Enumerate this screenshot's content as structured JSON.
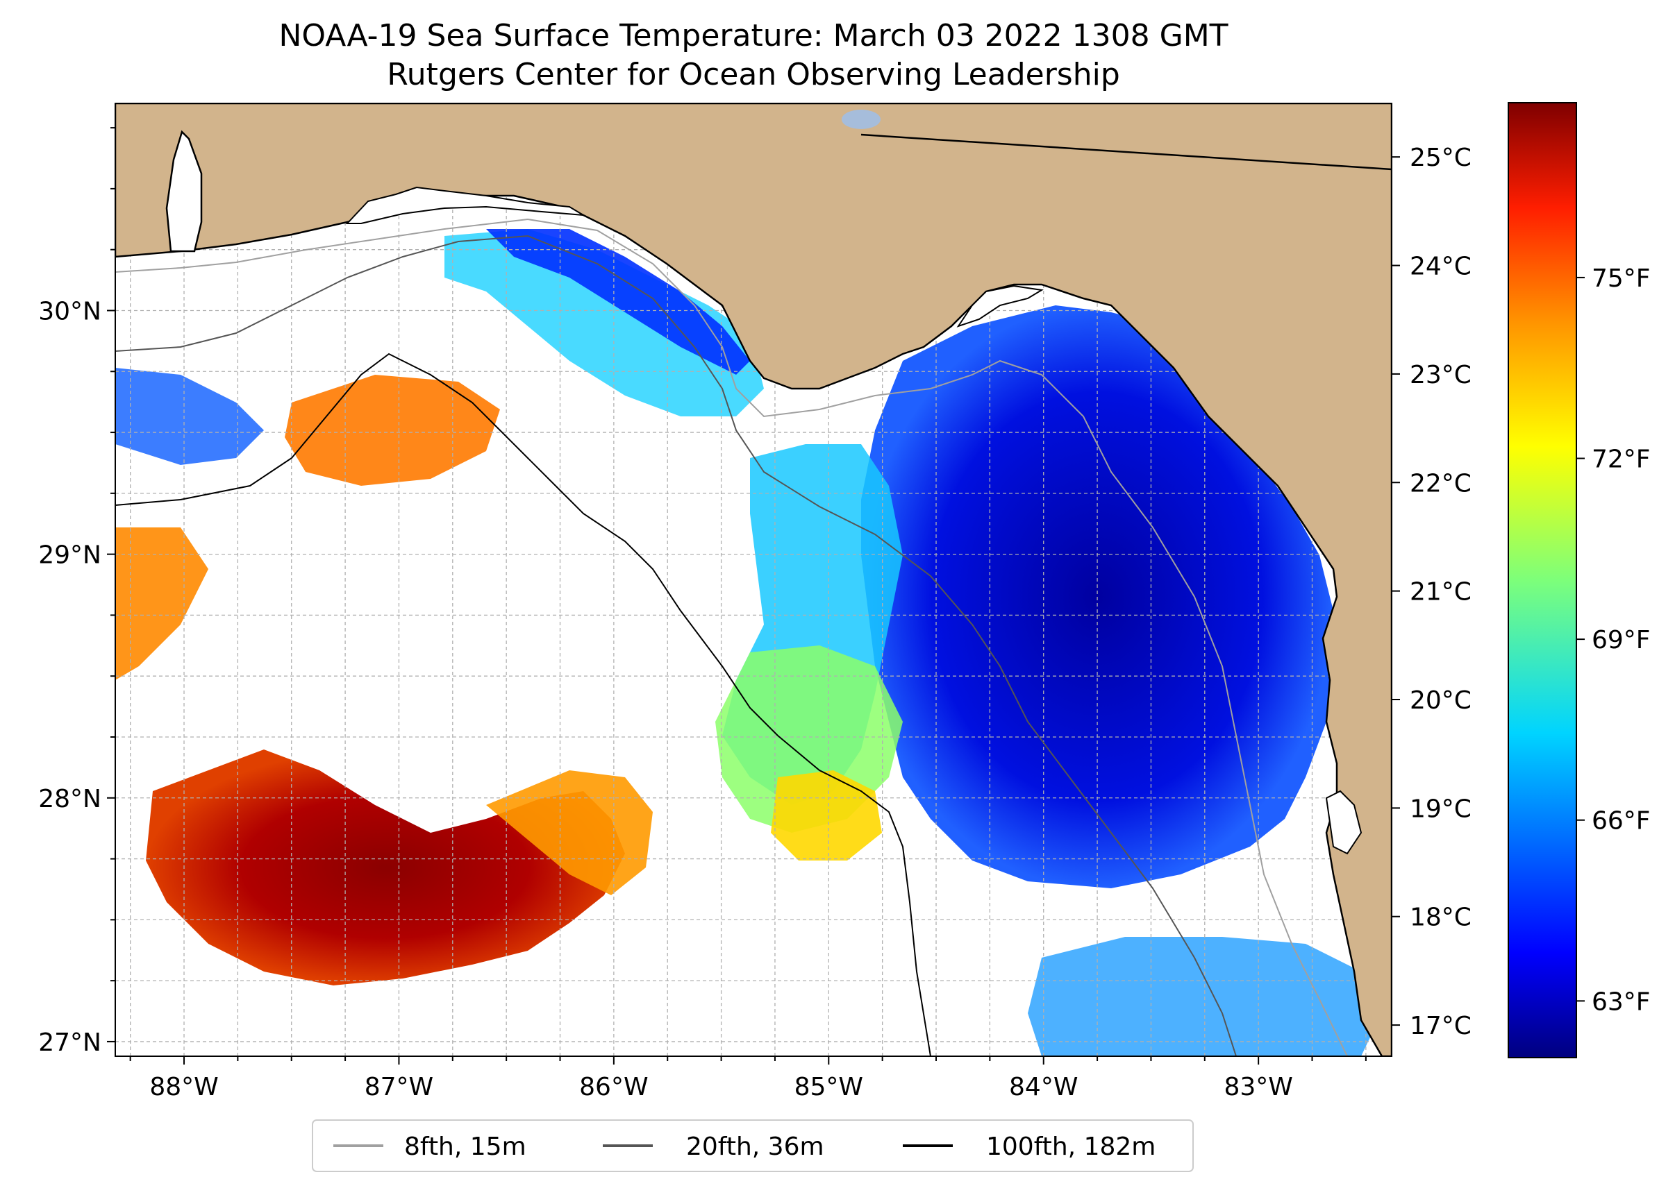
{
  "title": {
    "line1": "NOAA-19 Sea Surface Temperature: March 03 2022 1308 GMT",
    "line2": "Rutgers Center for Ocean Observing Leadership"
  },
  "map": {
    "lon_range": [
      -88.32,
      -82.38
    ],
    "lat_range": [
      26.94,
      30.85
    ],
    "lon_ticks": [
      {
        "value": -88,
        "label": "88°W"
      },
      {
        "value": -87,
        "label": "87°W"
      },
      {
        "value": -86,
        "label": "86°W"
      },
      {
        "value": -85,
        "label": "85°W"
      },
      {
        "value": -84,
        "label": "84°W"
      },
      {
        "value": -83,
        "label": "83°W"
      }
    ],
    "lat_ticks": [
      {
        "value": 27,
        "label": "27°N"
      },
      {
        "value": 28,
        "label": "28°N"
      },
      {
        "value": 29,
        "label": "29°N"
      },
      {
        "value": 30,
        "label": "30°N"
      }
    ]
  },
  "colorbar": {
    "celsius_ticks": [
      {
        "value": 17,
        "label": "17°C"
      },
      {
        "value": 18,
        "label": "18°C"
      },
      {
        "value": 19,
        "label": "19°C"
      },
      {
        "value": 20,
        "label": "20°C"
      },
      {
        "value": 21,
        "label": "21°C"
      },
      {
        "value": 22,
        "label": "22°C"
      },
      {
        "value": 23,
        "label": "23°C"
      },
      {
        "value": 24,
        "label": "24°C"
      },
      {
        "value": 25,
        "label": "25°C"
      }
    ],
    "fahrenheit_ticks": [
      {
        "value": 63,
        "label": "63°F"
      },
      {
        "value": 66,
        "label": "66°F"
      },
      {
        "value": 69,
        "label": "69°F"
      },
      {
        "value": 72,
        "label": "72°F"
      },
      {
        "value": 75,
        "label": "75°F"
      }
    ],
    "range_celsius": [
      16.7,
      25.5
    ],
    "colormap": "jet"
  },
  "legend": {
    "items": [
      {
        "label": "8fth, 15m",
        "color": "#a0a0a0"
      },
      {
        "label": "20fth, 36m",
        "color": "#555555"
      },
      {
        "label": "100fth, 182m",
        "color": "#000000"
      }
    ]
  },
  "colors": {
    "land": "#d2b48c",
    "gridline": "#b0b0b0"
  }
}
